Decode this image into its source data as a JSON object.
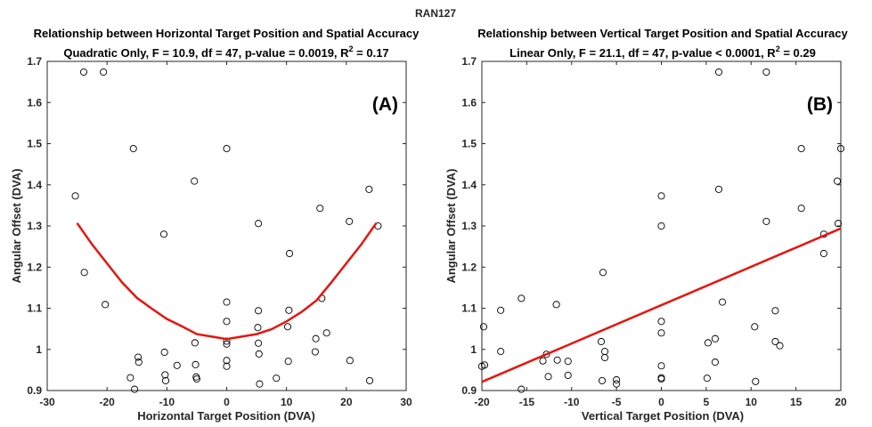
{
  "figure_title": "RAN127",
  "chart_data": [
    {
      "type": "scatter",
      "title": "Relationship between Horizontal Target Position and Spatial Accuracy",
      "subtitle_prefix": "Quadratic Only, F = 10.9, df = 47, p-value = 0.0019, R",
      "subtitle_sup": "2",
      "subtitle_suffix": " = 0.17",
      "panel_label": "(A)",
      "xlabel": "Horizontal Target Position (DVA)",
      "ylabel": "Angular Offset (DVA)",
      "xlim": [
        -30,
        30
      ],
      "ylim": [
        0.9,
        1.7
      ],
      "xticks": [
        -30,
        -20,
        -10,
        0,
        10,
        20,
        30
      ],
      "yticks": [
        0.9,
        1,
        1.1,
        1.2,
        1.3,
        1.4,
        1.5,
        1.6,
        1.7
      ],
      "grid": false,
      "marker_color": "#000000",
      "fit_color": "#e8140e",
      "points": [
        [
          -25.3,
          1.373
        ],
        [
          -23.9,
          1.674
        ],
        [
          -23.8,
          1.187
        ],
        [
          -20.6,
          1.674
        ],
        [
          -20.3,
          1.109
        ],
        [
          -16.1,
          0.931
        ],
        [
          -15.6,
          1.488
        ],
        [
          -15.4,
          0.903
        ],
        [
          -14.8,
          0.981
        ],
        [
          -14.7,
          0.969
        ],
        [
          -10.5,
          1.28
        ],
        [
          -10.4,
          0.993
        ],
        [
          -10.3,
          0.938
        ],
        [
          -10.2,
          0.924
        ],
        [
          -8.3,
          0.961
        ],
        [
          -5.4,
          1.409
        ],
        [
          -5.3,
          1.016
        ],
        [
          -5.2,
          0.963
        ],
        [
          -5.1,
          0.933
        ],
        [
          -5.0,
          0.928
        ],
        [
          0.0,
          1.488
        ],
        [
          0.0,
          1.115
        ],
        [
          0.0,
          1.068
        ],
        [
          0.0,
          1.02
        ],
        [
          0.0,
          1.013
        ],
        [
          0.0,
          0.973
        ],
        [
          0.0,
          0.959
        ],
        [
          5.3,
          1.306
        ],
        [
          5.3,
          1.094
        ],
        [
          5.2,
          1.053
        ],
        [
          5.3,
          1.015
        ],
        [
          5.4,
          0.989
        ],
        [
          5.5,
          0.916
        ],
        [
          8.3,
          0.93
        ],
        [
          10.5,
          1.233
        ],
        [
          10.4,
          1.095
        ],
        [
          10.2,
          1.055
        ],
        [
          10.3,
          0.971
        ],
        [
          14.9,
          1.026
        ],
        [
          14.8,
          0.994
        ],
        [
          15.6,
          1.343
        ],
        [
          15.9,
          1.124
        ],
        [
          16.7,
          1.04
        ],
        [
          20.5,
          1.311
        ],
        [
          20.6,
          0.973
        ],
        [
          23.8,
          1.389
        ],
        [
          23.9,
          0.924
        ],
        [
          25.3,
          1.3
        ]
      ],
      "fit": {
        "kind": "quadratic",
        "x": [
          -25,
          -22.5,
          -20,
          -17.5,
          -15,
          -12.5,
          -10,
          -7.5,
          -5,
          -2.5,
          0,
          2.5,
          5,
          7.5,
          10,
          12.5,
          15,
          17.5,
          20,
          22.5,
          25
        ],
        "y": [
          1.307,
          1.255,
          1.209,
          1.163,
          1.125,
          1.099,
          1.074,
          1.056,
          1.037,
          1.031,
          1.025,
          1.031,
          1.037,
          1.049,
          1.068,
          1.091,
          1.119,
          1.163,
          1.209,
          1.255,
          1.307
        ]
      }
    },
    {
      "type": "scatter",
      "title": "Relationship between Vertical Target Position and Spatial Accuracy",
      "subtitle_prefix": "Linear Only, F = 21.1, df = 47, p-value < 0.0001, R",
      "subtitle_sup": "2",
      "subtitle_suffix": " = 0.29",
      "panel_label": "(B)",
      "xlabel": "Vertical Target Position (DVA)",
      "ylabel": "Angular Offset (DVA)",
      "xlim": [
        -20,
        20
      ],
      "ylim": [
        0.9,
        1.7
      ],
      "xticks": [
        -20,
        -15,
        -10,
        -5,
        0,
        5,
        10,
        15,
        20
      ],
      "yticks": [
        0.9,
        1,
        1.1,
        1.2,
        1.3,
        1.4,
        1.5,
        1.6,
        1.7
      ],
      "grid": false,
      "marker_color": "#000000",
      "fit_color": "#e8140e",
      "points": [
        [
          -20.0,
          0.959
        ],
        [
          -19.7,
          0.962
        ],
        [
          -19.8,
          1.055
        ],
        [
          -17.9,
          1.095
        ],
        [
          -17.9,
          0.995
        ],
        [
          -15.6,
          1.124
        ],
        [
          -15.6,
          0.903
        ],
        [
          -13.2,
          0.972
        ],
        [
          -12.8,
          0.988
        ],
        [
          -12.6,
          0.934
        ],
        [
          -11.7,
          1.109
        ],
        [
          -11.6,
          0.974
        ],
        [
          -10.4,
          0.971
        ],
        [
          -10.4,
          0.937
        ],
        [
          -6.7,
          1.019
        ],
        [
          -6.5,
          1.187
        ],
        [
          -6.3,
          0.995
        ],
        [
          -6.3,
          0.98
        ],
        [
          -6.6,
          0.924
        ],
        [
          -5.0,
          0.926
        ],
        [
          -5.0,
          0.916
        ],
        [
          0.0,
          1.373
        ],
        [
          0.0,
          1.3
        ],
        [
          0.0,
          1.068
        ],
        [
          0.0,
          1.04
        ],
        [
          0.0,
          0.96
        ],
        [
          0.0,
          0.931
        ],
        [
          0.0,
          0.928
        ],
        [
          5.2,
          1.016
        ],
        [
          5.1,
          0.93
        ],
        [
          6.0,
          1.026
        ],
        [
          6.0,
          0.969
        ],
        [
          6.4,
          1.674
        ],
        [
          6.4,
          1.389
        ],
        [
          6.8,
          1.115
        ],
        [
          10.4,
          1.055
        ],
        [
          10.5,
          0.922
        ],
        [
          11.7,
          1.674
        ],
        [
          11.7,
          1.311
        ],
        [
          12.7,
          1.094
        ],
        [
          12.7,
          1.019
        ],
        [
          13.2,
          1.009
        ],
        [
          15.6,
          1.488
        ],
        [
          15.6,
          1.343
        ],
        [
          18.1,
          1.28
        ],
        [
          18.1,
          1.233
        ],
        [
          19.6,
          1.409
        ],
        [
          19.7,
          1.306
        ],
        [
          20.0,
          1.488
        ]
      ],
      "fit": {
        "kind": "linear",
        "x": [
          -20,
          20
        ],
        "y": [
          0.921,
          1.294
        ]
      }
    }
  ]
}
